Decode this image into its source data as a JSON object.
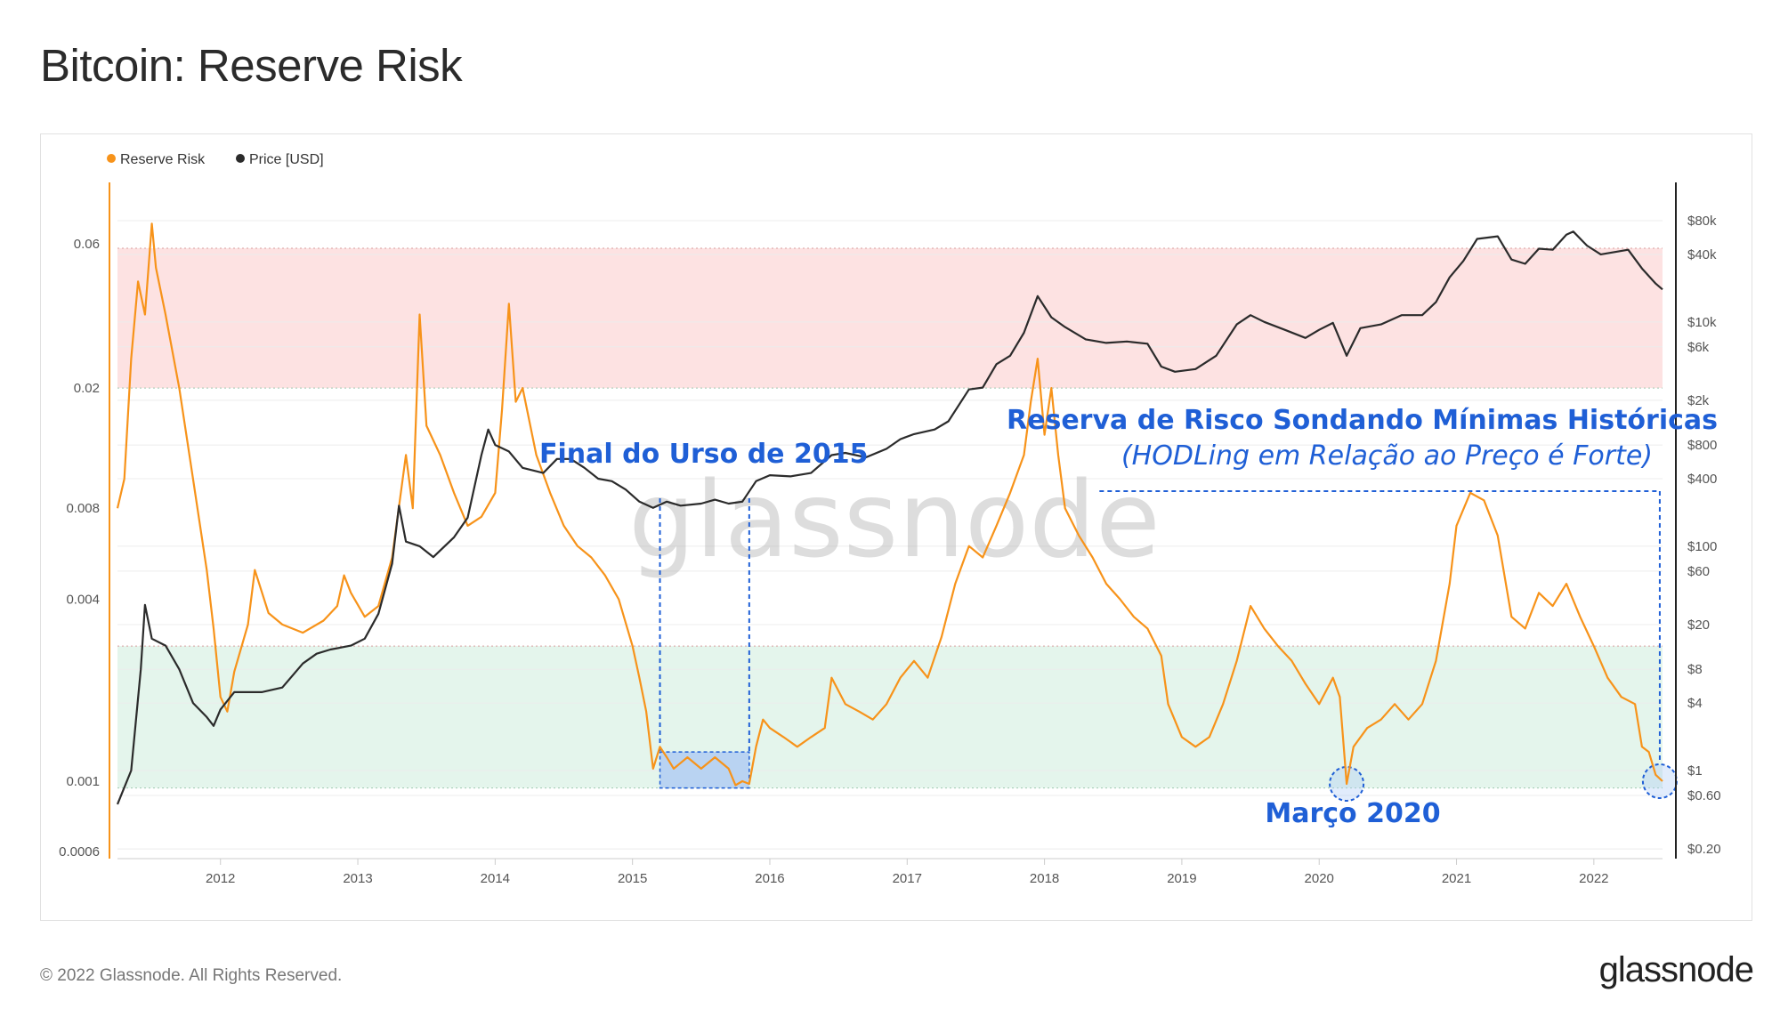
{
  "page": {
    "title": "Bitcoin: Reserve Risk",
    "footer_copyright": "© 2022 Glassnode. All Rights Reserved.",
    "footer_logo": "glassnode",
    "watermark": "glassnode"
  },
  "chart_data": {
    "type": "line",
    "title": "Bitcoin: Reserve Risk",
    "legend": [
      {
        "name": "Reserve Risk",
        "color": "#f7931a"
      },
      {
        "name": "Price [USD]",
        "color": "#2b2b2b"
      }
    ],
    "legend_placement": "top-left",
    "x_ticks": [
      "2012",
      "2013",
      "2014",
      "2015",
      "2016",
      "2017",
      "2018",
      "2019",
      "2020",
      "2021",
      "2022"
    ],
    "x_range": [
      2011.25,
      2022.5
    ],
    "left_axis": {
      "scale": "log",
      "ticks": [
        {
          "value": 0.06,
          "label": "0.06"
        },
        {
          "value": 0.02,
          "label": "0.02"
        },
        {
          "value": 0.008,
          "label": "0.008"
        },
        {
          "value": 0.004,
          "label": "0.004"
        },
        {
          "value": 0.001,
          "label": "0.001"
        },
        {
          "value": 0.0006,
          "label": "0.0006"
        }
      ]
    },
    "right_axis": {
      "scale": "log",
      "ticks": [
        {
          "value": 80000,
          "label": "$80k"
        },
        {
          "value": 40000,
          "label": "$40k"
        },
        {
          "value": 10000,
          "label": "$10k"
        },
        {
          "value": 6000,
          "label": "$6k"
        },
        {
          "value": 2000,
          "label": "$2k"
        },
        {
          "value": 800,
          "label": "$800"
        },
        {
          "value": 400,
          "label": "$400"
        },
        {
          "value": 100,
          "label": "$100"
        },
        {
          "value": 60,
          "label": "$60"
        },
        {
          "value": 20,
          "label": "$20"
        },
        {
          "value": 8,
          "label": "$8"
        },
        {
          "value": 4,
          "label": "$4"
        },
        {
          "value": 1,
          "label": "$1"
        },
        {
          "value": 0.6,
          "label": "$0.60"
        },
        {
          "value": 0.2,
          "label": "$0.20"
        }
      ]
    },
    "bands": [
      {
        "name": "high-risk-zone",
        "from": 0.02,
        "to": 0.058,
        "color": "#fde2e2"
      },
      {
        "name": "low-risk-zone",
        "from": 0.00095,
        "to": 0.0028,
        "color": "#e4f5ec"
      }
    ],
    "series": [
      {
        "name": "Reserve Risk",
        "color": "#f7931a",
        "axis": "left",
        "points": [
          [
            2011.25,
            0.008
          ],
          [
            2011.3,
            0.01
          ],
          [
            2011.35,
            0.025
          ],
          [
            2011.4,
            0.045
          ],
          [
            2011.45,
            0.035
          ],
          [
            2011.5,
            0.07
          ],
          [
            2011.53,
            0.05
          ],
          [
            2011.6,
            0.035
          ],
          [
            2011.7,
            0.02
          ],
          [
            2011.8,
            0.01
          ],
          [
            2011.9,
            0.005
          ],
          [
            2011.95,
            0.0032
          ],
          [
            2012.0,
            0.0019
          ],
          [
            2012.05,
            0.0017
          ],
          [
            2012.1,
            0.0023
          ],
          [
            2012.2,
            0.0033
          ],
          [
            2012.25,
            0.005
          ],
          [
            2012.35,
            0.0036
          ],
          [
            2012.45,
            0.0033
          ],
          [
            2012.6,
            0.0031
          ],
          [
            2012.75,
            0.0034
          ],
          [
            2012.85,
            0.0038
          ],
          [
            2012.9,
            0.0048
          ],
          [
            2012.95,
            0.0042
          ],
          [
            2013.05,
            0.0035
          ],
          [
            2013.15,
            0.0038
          ],
          [
            2013.25,
            0.0055
          ],
          [
            2013.35,
            0.012
          ],
          [
            2013.4,
            0.008
          ],
          [
            2013.45,
            0.035
          ],
          [
            2013.5,
            0.015
          ],
          [
            2013.6,
            0.012
          ],
          [
            2013.7,
            0.009
          ],
          [
            2013.8,
            0.007
          ],
          [
            2013.9,
            0.0075
          ],
          [
            2014.0,
            0.009
          ],
          [
            2014.05,
            0.017
          ],
          [
            2014.1,
            0.038
          ],
          [
            2014.15,
            0.018
          ],
          [
            2014.2,
            0.02
          ],
          [
            2014.3,
            0.012
          ],
          [
            2014.4,
            0.009
          ],
          [
            2014.5,
            0.007
          ],
          [
            2014.6,
            0.006
          ],
          [
            2014.7,
            0.0055
          ],
          [
            2014.8,
            0.0048
          ],
          [
            2014.9,
            0.004
          ],
          [
            2015.0,
            0.0028
          ],
          [
            2015.05,
            0.0022
          ],
          [
            2015.1,
            0.0017
          ],
          [
            2015.15,
            0.0011
          ],
          [
            2015.2,
            0.0013
          ],
          [
            2015.25,
            0.0012
          ],
          [
            2015.3,
            0.0011
          ],
          [
            2015.4,
            0.0012
          ],
          [
            2015.5,
            0.0011
          ],
          [
            2015.6,
            0.0012
          ],
          [
            2015.7,
            0.0011
          ],
          [
            2015.75,
            0.00097
          ],
          [
            2015.8,
            0.001
          ],
          [
            2015.85,
            0.00098
          ],
          [
            2015.9,
            0.0013
          ],
          [
            2015.95,
            0.0016
          ],
          [
            2016.0,
            0.0015
          ],
          [
            2016.1,
            0.0014
          ],
          [
            2016.2,
            0.0013
          ],
          [
            2016.3,
            0.0014
          ],
          [
            2016.4,
            0.0015
          ],
          [
            2016.45,
            0.0022
          ],
          [
            2016.55,
            0.0018
          ],
          [
            2016.65,
            0.0017
          ],
          [
            2016.75,
            0.0016
          ],
          [
            2016.85,
            0.0018
          ],
          [
            2016.95,
            0.0022
          ],
          [
            2017.05,
            0.0025
          ],
          [
            2017.15,
            0.0022
          ],
          [
            2017.25,
            0.003
          ],
          [
            2017.35,
            0.0045
          ],
          [
            2017.45,
            0.006
          ],
          [
            2017.55,
            0.0055
          ],
          [
            2017.65,
            0.007
          ],
          [
            2017.75,
            0.009
          ],
          [
            2017.85,
            0.012
          ],
          [
            2017.9,
            0.018
          ],
          [
            2017.95,
            0.025
          ],
          [
            2018.0,
            0.014
          ],
          [
            2018.05,
            0.02
          ],
          [
            2018.1,
            0.012
          ],
          [
            2018.15,
            0.008
          ],
          [
            2018.25,
            0.0065
          ],
          [
            2018.35,
            0.0055
          ],
          [
            2018.45,
            0.0045
          ],
          [
            2018.55,
            0.004
          ],
          [
            2018.65,
            0.0035
          ],
          [
            2018.75,
            0.0032
          ],
          [
            2018.85,
            0.0026
          ],
          [
            2018.9,
            0.0018
          ],
          [
            2019.0,
            0.0014
          ],
          [
            2019.1,
            0.0013
          ],
          [
            2019.2,
            0.0014
          ],
          [
            2019.3,
            0.0018
          ],
          [
            2019.4,
            0.0025
          ],
          [
            2019.5,
            0.0038
          ],
          [
            2019.6,
            0.0032
          ],
          [
            2019.7,
            0.0028
          ],
          [
            2019.8,
            0.0025
          ],
          [
            2019.9,
            0.0021
          ],
          [
            2020.0,
            0.0018
          ],
          [
            2020.1,
            0.0022
          ],
          [
            2020.15,
            0.0019
          ],
          [
            2020.2,
            0.00098
          ],
          [
            2020.25,
            0.0013
          ],
          [
            2020.35,
            0.0015
          ],
          [
            2020.45,
            0.0016
          ],
          [
            2020.55,
            0.0018
          ],
          [
            2020.65,
            0.0016
          ],
          [
            2020.75,
            0.0018
          ],
          [
            2020.85,
            0.0025
          ],
          [
            2020.95,
            0.0045
          ],
          [
            2021.0,
            0.007
          ],
          [
            2021.1,
            0.009
          ],
          [
            2021.2,
            0.0085
          ],
          [
            2021.3,
            0.0065
          ],
          [
            2021.4,
            0.0035
          ],
          [
            2021.5,
            0.0032
          ],
          [
            2021.6,
            0.0042
          ],
          [
            2021.7,
            0.0038
          ],
          [
            2021.8,
            0.0045
          ],
          [
            2021.9,
            0.0035
          ],
          [
            2022.0,
            0.0028
          ],
          [
            2022.1,
            0.0022
          ],
          [
            2022.2,
            0.0019
          ],
          [
            2022.3,
            0.0018
          ],
          [
            2022.35,
            0.0013
          ],
          [
            2022.4,
            0.00125
          ],
          [
            2022.45,
            0.00105
          ],
          [
            2022.5,
            0.001
          ]
        ]
      },
      {
        "name": "Price [USD]",
        "color": "#2b2b2b",
        "axis": "right",
        "points": [
          [
            2011.25,
            0.5
          ],
          [
            2011.35,
            1
          ],
          [
            2011.42,
            8
          ],
          [
            2011.45,
            30
          ],
          [
            2011.5,
            15
          ],
          [
            2011.6,
            13
          ],
          [
            2011.7,
            8
          ],
          [
            2011.8,
            4
          ],
          [
            2011.9,
            3
          ],
          [
            2011.95,
            2.5
          ],
          [
            2012.0,
            3.5
          ],
          [
            2012.1,
            5
          ],
          [
            2012.2,
            5
          ],
          [
            2012.3,
            5
          ],
          [
            2012.45,
            5.5
          ],
          [
            2012.6,
            9
          ],
          [
            2012.7,
            11
          ],
          [
            2012.8,
            12
          ],
          [
            2012.95,
            13
          ],
          [
            2013.05,
            15
          ],
          [
            2013.15,
            25
          ],
          [
            2013.25,
            70
          ],
          [
            2013.3,
            230
          ],
          [
            2013.35,
            110
          ],
          [
            2013.45,
            100
          ],
          [
            2013.55,
            80
          ],
          [
            2013.7,
            120
          ],
          [
            2013.8,
            180
          ],
          [
            2013.9,
            650
          ],
          [
            2013.95,
            1100
          ],
          [
            2014.0,
            800
          ],
          [
            2014.1,
            700
          ],
          [
            2014.2,
            500
          ],
          [
            2014.35,
            450
          ],
          [
            2014.45,
            600
          ],
          [
            2014.55,
            600
          ],
          [
            2014.65,
            500
          ],
          [
            2014.75,
            400
          ],
          [
            2014.85,
            380
          ],
          [
            2014.95,
            320
          ],
          [
            2015.05,
            250
          ],
          [
            2015.15,
            220
          ],
          [
            2015.25,
            250
          ],
          [
            2015.35,
            230
          ],
          [
            2015.5,
            240
          ],
          [
            2015.6,
            260
          ],
          [
            2015.7,
            240
          ],
          [
            2015.8,
            250
          ],
          [
            2015.9,
            380
          ],
          [
            2016.0,
            430
          ],
          [
            2016.15,
            420
          ],
          [
            2016.3,
            450
          ],
          [
            2016.45,
            650
          ],
          [
            2016.55,
            680
          ],
          [
            2016.7,
            620
          ],
          [
            2016.85,
            740
          ],
          [
            2016.95,
            900
          ],
          [
            2017.05,
            1000
          ],
          [
            2017.2,
            1100
          ],
          [
            2017.3,
            1300
          ],
          [
            2017.45,
            2500
          ],
          [
            2017.55,
            2600
          ],
          [
            2017.65,
            4200
          ],
          [
            2017.75,
            5000
          ],
          [
            2017.85,
            8000
          ],
          [
            2017.95,
            17000
          ],
          [
            2018.05,
            11000
          ],
          [
            2018.15,
            9000
          ],
          [
            2018.3,
            7000
          ],
          [
            2018.45,
            6500
          ],
          [
            2018.6,
            6700
          ],
          [
            2018.75,
            6400
          ],
          [
            2018.85,
            4000
          ],
          [
            2018.95,
            3600
          ],
          [
            2019.1,
            3800
          ],
          [
            2019.25,
            5000
          ],
          [
            2019.4,
            9500
          ],
          [
            2019.5,
            11500
          ],
          [
            2019.6,
            10000
          ],
          [
            2019.75,
            8500
          ],
          [
            2019.9,
            7200
          ],
          [
            2020.0,
            8500
          ],
          [
            2020.1,
            9800
          ],
          [
            2020.2,
            5000
          ],
          [
            2020.3,
            8800
          ],
          [
            2020.45,
            9500
          ],
          [
            2020.6,
            11500
          ],
          [
            2020.75,
            11500
          ],
          [
            2020.85,
            15000
          ],
          [
            2020.95,
            25000
          ],
          [
            2021.05,
            35000
          ],
          [
            2021.15,
            55000
          ],
          [
            2021.3,
            58000
          ],
          [
            2021.4,
            36000
          ],
          [
            2021.5,
            33000
          ],
          [
            2021.6,
            45000
          ],
          [
            2021.7,
            44000
          ],
          [
            2021.8,
            60000
          ],
          [
            2021.85,
            64000
          ],
          [
            2021.95,
            48000
          ],
          [
            2022.05,
            40000
          ],
          [
            2022.15,
            42000
          ],
          [
            2022.25,
            44000
          ],
          [
            2022.35,
            30000
          ],
          [
            2022.45,
            22000
          ],
          [
            2022.5,
            19500
          ]
        ]
      }
    ],
    "annotations": {
      "bear_2015": "Final do Urso de 2015",
      "headline": "Reserva de Risco Sondando Mínimas Históricas",
      "subheadline": "(HODLing em Relação ao Preço é Forte)",
      "march_2020": "Março 2020"
    }
  }
}
